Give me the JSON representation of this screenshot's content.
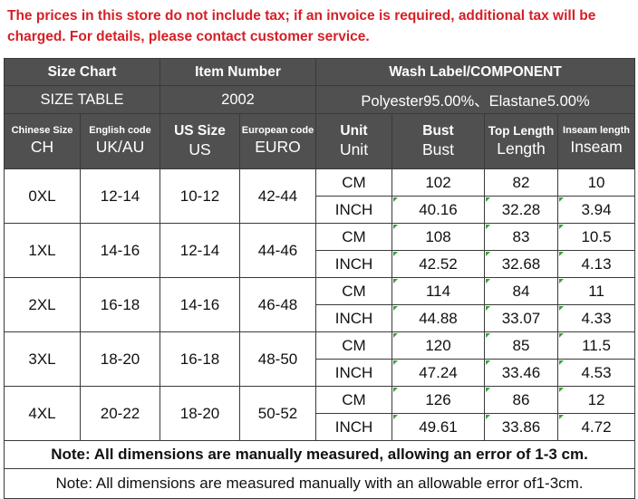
{
  "notice": "The prices in this store do not include tax; if an invoice is required, additional tax will be charged. For details, please contact customer service.",
  "header": {
    "size_chart": "Size Chart",
    "size_table": "SIZE TABLE",
    "item_number_label": "Item Number",
    "item_number": "2002",
    "wash_label": "Wash Label/COMPONENT",
    "component": "Polyester95.00%、Elastane5.00%"
  },
  "columns": [
    {
      "top": "Chinese Size",
      "bottom": "CH"
    },
    {
      "top": "English code",
      "bottom": "UK/AU"
    },
    {
      "top": "US Size",
      "bottom": "US"
    },
    {
      "top": "European code",
      "bottom": "EURO"
    },
    {
      "top": "Unit",
      "bottom": "Unit"
    },
    {
      "top": "Bust",
      "bottom": "Bust"
    },
    {
      "top": "Top Length",
      "bottom": "Length"
    },
    {
      "top": "Inseam length",
      "bottom": "Inseam"
    }
  ],
  "sizes": [
    {
      "ch": "0XL",
      "uk": "12-14",
      "us": "10-12",
      "euro": "42-44",
      "cm": {
        "unit": "CM",
        "bust": "102",
        "length": "82",
        "inseam": "10"
      },
      "inch": {
        "unit": "INCH",
        "bust": "40.16",
        "length": "32.28",
        "inseam": "3.94"
      }
    },
    {
      "ch": "1XL",
      "uk": "14-16",
      "us": "12-14",
      "euro": "44-46",
      "cm": {
        "unit": "CM",
        "bust": "108",
        "length": "83",
        "inseam": "10.5"
      },
      "inch": {
        "unit": "INCH",
        "bust": "42.52",
        "length": "32.68",
        "inseam": "4.13"
      }
    },
    {
      "ch": "2XL",
      "uk": "16-18",
      "us": "14-16",
      "euro": "46-48",
      "cm": {
        "unit": "CM",
        "bust": "114",
        "length": "84",
        "inseam": "11"
      },
      "inch": {
        "unit": "INCH",
        "bust": "44.88",
        "length": "33.07",
        "inseam": "4.33"
      }
    },
    {
      "ch": "3XL",
      "uk": "18-20",
      "us": "16-18",
      "euro": "48-50",
      "cm": {
        "unit": "CM",
        "bust": "120",
        "length": "85",
        "inseam": "11.5"
      },
      "inch": {
        "unit": "INCH",
        "bust": "47.24",
        "length": "33.46",
        "inseam": "4.53"
      }
    },
    {
      "ch": "4XL",
      "uk": "20-22",
      "us": "18-20",
      "euro": "50-52",
      "cm": {
        "unit": "CM",
        "bust": "126",
        "length": "86",
        "inseam": "12"
      },
      "inch": {
        "unit": "INCH",
        "bust": "49.61",
        "length": "33.86",
        "inseam": "4.72"
      }
    }
  ],
  "notes": {
    "note1": "Note: All dimensions are manually measured, allowing an error of 1-3 cm.",
    "note2": "Note: All dimensions are measured manually with an allowable error of1-3cm."
  }
}
